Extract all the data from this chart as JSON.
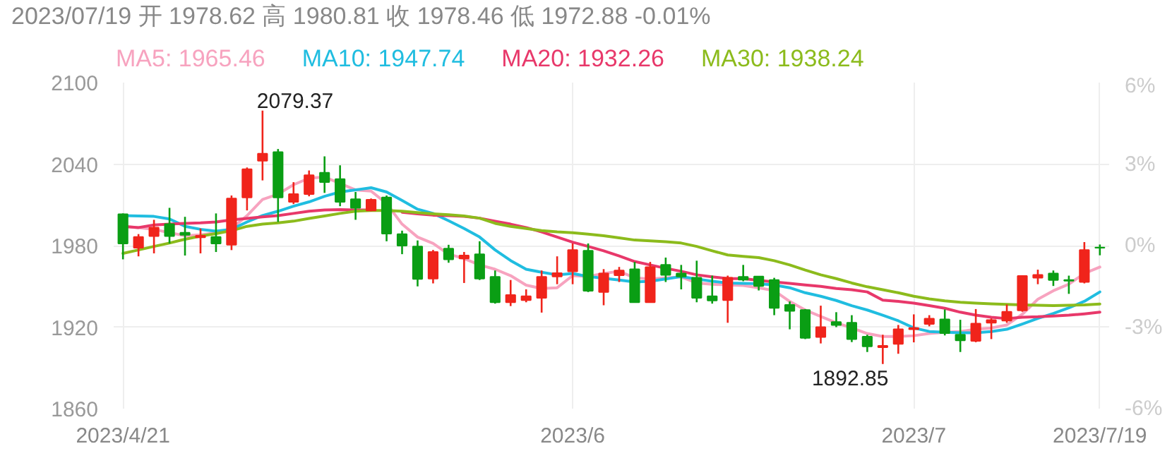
{
  "chart_data": {
    "type": "candlestick",
    "title": "2023/07/19 开 1978.62 高 1980.81 收 1978.46 低 1972.88 -0.01%",
    "categories": [
      "2023/4/21",
      null,
      null,
      null,
      null,
      null,
      null,
      null,
      null,
      null,
      null,
      null,
      null,
      null,
      null,
      null,
      null,
      null,
      null,
      null,
      null,
      null,
      null,
      null,
      null,
      null,
      null,
      null,
      null,
      "2023/6",
      null,
      null,
      null,
      null,
      null,
      null,
      null,
      null,
      null,
      null,
      null,
      null,
      null,
      null,
      null,
      null,
      null,
      null,
      null,
      null,
      null,
      "2023/7",
      null,
      null,
      null,
      null,
      null,
      null,
      null,
      null,
      null,
      null,
      null,
      "2023/7/19"
    ],
    "ohlc": [
      [
        2003.1,
        2003.7,
        1969.9,
        1981.6
      ],
      [
        1978.4,
        1988.5,
        1972.1,
        1986.3
      ],
      [
        1987,
        1999,
        1974.3,
        1993.3
      ],
      [
        1995.8,
        2007.8,
        1981.6,
        1987
      ],
      [
        1989.5,
        2001.2,
        1972.7,
        1987.9
      ],
      [
        1986.1,
        1992.6,
        1974.3,
        1987.3
      ],
      [
        1986.3,
        2003.7,
        1975.3,
        1981.6
      ],
      [
        1980.6,
        2016.9,
        1976.7,
        2014.7
      ],
      [
        2015.4,
        2037.5,
        2005.9,
        2036.2
      ],
      [
        2042.5,
        2079.37,
        2028,
        2047.6
      ],
      [
        2048.8,
        2051.1,
        1997.4,
        2015.4
      ],
      [
        2012.2,
        2026.7,
        2010.6,
        2017.9
      ],
      [
        2017.9,
        2035.3,
        2016.3,
        2031.8
      ],
      [
        2033.7,
        2045.7,
        2018.8,
        2026.7
      ],
      [
        2028.9,
        2039.1,
        2009,
        2012.2
      ],
      [
        2014.1,
        2019.5,
        1999,
        2007.8
      ],
      [
        2005.9,
        2014.7,
        2005.3,
        2013.8
      ],
      [
        2015.4,
        2016.9,
        1983.2,
        1988.8
      ],
      [
        1988.5,
        1991,
        1973.7,
        1980
      ],
      [
        1979.4,
        1983.8,
        1950,
        1955.4
      ],
      [
        1955.7,
        1976.8,
        1952.2,
        1975.3
      ],
      [
        1977.8,
        1980.6,
        1967.4,
        1969.9
      ],
      [
        1970.5,
        1975.3,
        1952.5,
        1972.7
      ],
      [
        1973.7,
        1983.2,
        1954.7,
        1955.7
      ],
      [
        1957,
        1961.7,
        1937.3,
        1938.3
      ],
      [
        1938.3,
        1954.7,
        1935.5,
        1943.7
      ],
      [
        1939.9,
        1947.8,
        1938.3,
        1942.7
      ],
      [
        1941.5,
        1961.7,
        1930.7,
        1957
      ],
      [
        1957.3,
        1972.1,
        1951.6,
        1959.8
      ],
      [
        1961.1,
        1981.6,
        1951.6,
        1976.8
      ],
      [
        1976.2,
        1981.6,
        1945.8,
        1946.8
      ],
      [
        1945.8,
        1962.7,
        1936.1,
        1959.5
      ],
      [
        1958.2,
        1964.3,
        1953.2,
        1961.7
      ],
      [
        1962.6,
        1968,
        1938.3,
        1938.3
      ],
      [
        1938.3,
        1968,
        1938.3,
        1964.2
      ],
      [
        1965.8,
        1971.2,
        1953.2,
        1958.5
      ],
      [
        1959.5,
        1965.8,
        1947.8,
        1957.3
      ],
      [
        1956.3,
        1968.9,
        1938.3,
        1941.5
      ],
      [
        1942.7,
        1957.9,
        1937.3,
        1939.6
      ],
      [
        1939.9,
        1957.9,
        1923.2,
        1956.3
      ],
      [
        1957,
        1965.8,
        1953.8,
        1955
      ],
      [
        1957.3,
        1957.6,
        1947,
        1950.3
      ],
      [
        1954.7,
        1956.3,
        1928.8,
        1934.2
      ],
      [
        1936.4,
        1938.9,
        1918.4,
        1932
      ],
      [
        1932.6,
        1933.3,
        1911.2,
        1912.1
      ],
      [
        1912.7,
        1935.8,
        1908,
        1920
      ],
      [
        1923.8,
        1931,
        1920,
        1921.6
      ],
      [
        1923.2,
        1928.8,
        1909,
        1911.2
      ],
      [
        1913,
        1914.4,
        1901.7,
        1905.8
      ],
      [
        1905.2,
        1914.4,
        1892.85,
        1906.2
      ],
      [
        1907.6,
        1921.6,
        1900.4,
        1918.4
      ],
      [
        1918.4,
        1929.4,
        1908.8,
        1919.4
      ],
      [
        1922.3,
        1928.8,
        1920.6,
        1926.2
      ],
      [
        1925.7,
        1933,
        1913.9,
        1915.6
      ],
      [
        1914.4,
        1925.4,
        1901.7,
        1910.2
      ],
      [
        1909.9,
        1933.3,
        1908.9,
        1922.6
      ],
      [
        1923.2,
        1926.4,
        1911.2,
        1925.2
      ],
      [
        1924.8,
        1936.7,
        1923.2,
        1931.3
      ],
      [
        1932.3,
        1958.2,
        1931.3,
        1957.6
      ],
      [
        1956.3,
        1962.3,
        1951.6,
        1958.5
      ],
      [
        1959.5,
        1961.7,
        1950.3,
        1954.7
      ],
      [
        1954.7,
        1957.9,
        1944.5,
        1954.1
      ],
      [
        1953.2,
        1982.6,
        1952.2,
        1976.8
      ],
      [
        1978.62,
        1980.81,
        1972.88,
        1978.46
      ]
    ],
    "colors": [
      "#0a9e14",
      "#f0241b",
      "#f0241b",
      "#0a9e14",
      "#0a9e14",
      "#f0241b",
      "#0a9e14",
      "#f0241b",
      "#f0241b",
      "#f0241b",
      "#0a9e14",
      "#f0241b",
      "#f0241b",
      "#0a9e14",
      "#0a9e14",
      "#0a9e14",
      "#f0241b",
      "#0a9e14",
      "#0a9e14",
      "#0a9e14",
      "#f0241b",
      "#0a9e14",
      "#f0241b",
      "#0a9e14",
      "#0a9e14",
      "#f0241b",
      "#f0241b",
      "#f0241b",
      "#f0241b",
      "#f0241b",
      "#0a9e14",
      "#f0241b",
      "#f0241b",
      "#0a9e14",
      "#f0241b",
      "#0a9e14",
      "#0a9e14",
      "#0a9e14",
      "#0a9e14",
      "#f0241b",
      "#0a9e14",
      "#0a9e14",
      "#0a9e14",
      "#0a9e14",
      "#0a9e14",
      "#f0241b",
      "#0a9e14",
      "#0a9e14",
      "#0a9e14",
      "#f0241b",
      "#f0241b",
      "#f0241b",
      "#f0241b",
      "#0a9e14",
      "#0a9e14",
      "#f0241b",
      "#f0241b",
      "#f0241b",
      "#f0241b",
      "#f0241b",
      "#0a9e14",
      "#0a9e14",
      "#f0241b",
      "#0a9e14"
    ],
    "series": [
      {
        "type": "line",
        "name": "MA5: 1965.46",
        "color": "#f7a3bf",
        "values": [
          1994.2,
          1993.3,
          1992,
          1989.5,
          1987.3,
          1987.9,
          1989.5,
          1992.6,
          2002,
          2014,
          2017.9,
          2024.8,
          2029.6,
          2030.5,
          2025.8,
          2021,
          2020.1,
          2011,
          1995.8,
          1986.3,
          1981.6,
          1973.7,
          1970.5,
          1965.8,
          1962.6,
          1957.9,
          1950.9,
          1948.4,
          1949,
          1957.9,
          1957.3,
          1959.5,
          1961.1,
          1956.3,
          1955.4,
          1956.3,
          1957,
          1952.5,
          1951.6,
          1951,
          1950.6,
          1949,
          1946.8,
          1938.9,
          1932.6,
          1927.9,
          1923.2,
          1919.4,
          1915.3,
          1913.1,
          1913.1,
          1913.7,
          1915.3,
          1916.2,
          1916.8,
          1918.4,
          1919.4,
          1921.6,
          1929.5,
          1940.5,
          1946.8,
          1951.6,
          1959.5,
          1964.2
        ]
      },
      {
        "type": "line",
        "name": "MA10: 1947.74",
        "color": "#20bde0",
        "values": [
          2002.1,
          2001.8,
          2001.5,
          1999.6,
          1994.2,
          1992,
          1990.7,
          1992,
          1997.4,
          2002.1,
          2005.3,
          2009,
          2012.2,
          2016.3,
          2019.5,
          2021,
          2022.6,
          2019.5,
          2013.2,
          2006.8,
          2003.7,
          1998.3,
          1992.6,
          1986.3,
          1976.8,
          1969,
          1962.6,
          1960.4,
          1958.5,
          1959.5,
          1957.3,
          1956,
          1954.7,
          1953.2,
          1953.8,
          1955.4,
          1957.3,
          1955.4,
          1953.8,
          1952.5,
          1952.2,
          1951.9,
          1951,
          1949,
          1945.3,
          1942.7,
          1939.6,
          1935.8,
          1932.6,
          1928.8,
          1924.7,
          1919.4,
          1916.8,
          1916.2,
          1915.9,
          1915.9,
          1916.8,
          1918.4,
          1922.3,
          1926.4,
          1930.1,
          1934.2,
          1939,
          1945.9
        ]
      },
      {
        "type": "line",
        "name": "MA20: 1932.26",
        "color": "#e8386a",
        "values": [
          1994.2,
          1993.3,
          1995.2,
          1995.8,
          1996.4,
          1996.7,
          1997.4,
          1999,
          2000,
          2001.2,
          2002.1,
          2003.7,
          2005.3,
          2006.2,
          2006.5,
          2006.2,
          2006.2,
          null,
          2004.6,
          2003.4,
          2002.4,
          2002.1,
          2001.5,
          2000.2,
          1998,
          1995.8,
          1993.3,
          1990.1,
          1986.3,
          1982.5,
          1979.4,
          1976.2,
          1972.4,
          1968.3,
          1965.8,
          1963.3,
          1961.1,
          1958.5,
          1957,
          1955.7,
          1955.7,
          1954.4,
          1953.2,
          1952.2,
          1951,
          1950,
          1948.4,
          1947.5,
          1945.9,
          1939.9,
          1939,
          1937.7,
          1935.8,
          1933.9,
          1931,
          1928.8,
          1927.3,
          1926.3,
          1927.3,
          1927.6,
          1928.2,
          1928.8,
          1929.8,
          1931
        ]
      },
      {
        "type": "line",
        "name": "MA30: 1938.24",
        "color": "#8cbb1c",
        "values": [
          1974.3,
          1976.8,
          1979.4,
          1981.9,
          1984.7,
          1987,
          1988.8,
          1991,
          1994.2,
          1995.8,
          1996.7,
          1998,
          2000,
          2001.8,
          2003.7,
          2005.3,
          2005.9,
          2005.9,
          2005.3,
          2004.3,
          2003.4,
          2002.7,
          2001.8,
          2000.2,
          1996.4,
          1994.2,
          1992.6,
          1991,
          1990.1,
          1989.5,
          1988.5,
          1987.3,
          1985.7,
          1984.1,
          1983.5,
          1982.8,
          1981.9,
          1979.4,
          1976.2,
          1973.1,
          1972.1,
          1971.2,
          1968.9,
          1965.8,
          1962,
          1958.5,
          1955.7,
          1952.5,
          1949.7,
          1947.5,
          1945.3,
          1942.7,
          1940.8,
          1939.3,
          1938.3,
          1937.7,
          1937.1,
          1936.7,
          1936.4,
          1936.1,
          1935.8,
          1936.1,
          1936.4,
          1937
        ]
      }
    ],
    "ylim": [
      1860,
      2100
    ],
    "yticks": [
      1860,
      1920,
      1980,
      2040,
      2100
    ],
    "y2lim": [
      -6,
      6
    ],
    "y2ticks": [
      {
        "value": -6,
        "label": "-6%"
      },
      {
        "value": -3,
        "label": "-3%"
      },
      {
        "value": 0,
        "label": "0%"
      },
      {
        "value": 3,
        "label": "3%"
      },
      {
        "value": 6,
        "label": "6%"
      }
    ],
    "annotations": [
      "2079.37",
      "1892.85"
    ],
    "grid": true,
    "legend": "top"
  }
}
